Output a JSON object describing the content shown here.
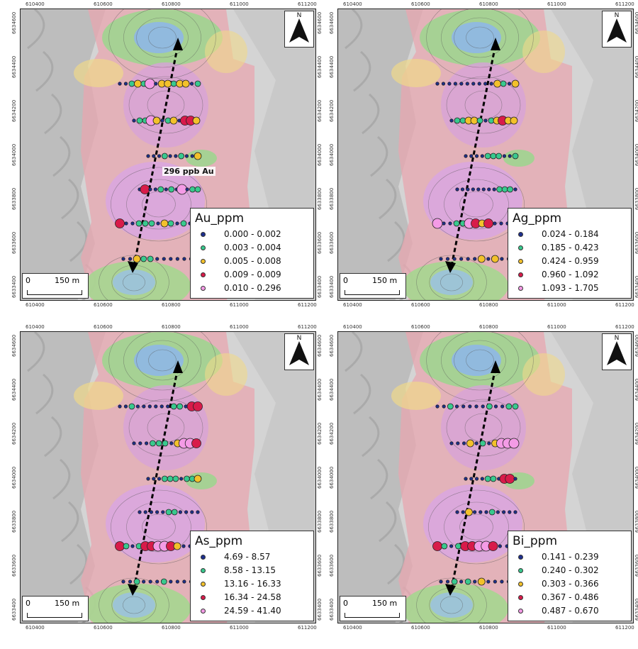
{
  "x_ticks": [
    "610400",
    "610600",
    "610800",
    "611000",
    "611200"
  ],
  "y_ticks": [
    "6633400",
    "6633600",
    "6633800",
    "6634000",
    "6634200",
    "6634400",
    "6634600"
  ],
  "north_label": "N",
  "scale": {
    "zero": "0",
    "distance": "150 m"
  },
  "annotation": "296 ppb Au",
  "class_colors": [
    "#1d2f8f",
    "#39c98e",
    "#f3c12b",
    "#d81b4a",
    "#f49be6"
  ],
  "panels": [
    {
      "title": "Au_ppm",
      "ranges": [
        "0.000 - 0.002",
        "0.003 - 0.004",
        "0.005 - 0.008",
        "0.009 - 0.009",
        "0.010 - 0.296"
      ],
      "lines": [
        [
          0,
          0,
          1,
          2,
          1,
          4,
          0,
          2,
          2,
          1,
          2,
          2,
          0,
          1
        ],
        [
          0,
          1,
          1,
          4,
          2,
          0,
          1,
          2,
          0,
          3,
          3,
          2
        ],
        [
          0,
          0,
          0,
          1,
          0,
          0,
          1,
          0,
          0,
          2
        ],
        [
          0,
          3,
          0,
          0,
          1,
          0,
          1,
          0,
          4,
          0,
          1,
          1
        ],
        [
          3,
          0,
          0,
          1,
          1,
          1,
          0,
          2,
          1,
          0,
          1,
          0,
          0
        ],
        [
          0,
          0,
          2,
          1,
          1,
          0,
          0,
          0,
          0,
          0,
          0,
          0
        ]
      ]
    },
    {
      "title": "Ag_ppm",
      "ranges": [
        "0.024 - 0.184",
        "0.185 - 0.423",
        "0.424 - 0.959",
        "0.960 - 1.092",
        "1.093 - 1.705"
      ],
      "lines": [
        [
          0,
          0,
          0,
          0,
          0,
          0,
          0,
          0,
          0,
          0,
          2,
          1,
          0,
          2
        ],
        [
          0,
          1,
          1,
          2,
          2,
          1,
          0,
          1,
          2,
          3,
          2,
          2
        ],
        [
          0,
          0,
          0,
          0,
          1,
          1,
          1,
          0,
          0,
          1
        ],
        [
          0,
          0,
          0,
          0,
          0,
          0,
          0,
          0,
          1,
          1,
          1,
          0
        ],
        [
          4,
          0,
          0,
          1,
          1,
          4,
          3,
          2,
          3,
          0,
          0,
          0,
          0
        ],
        [
          0,
          0,
          0,
          0,
          0,
          0,
          2,
          0,
          2,
          0,
          0,
          1
        ]
      ]
    },
    {
      "title": "As_ppm",
      "ranges": [
        "4.69 - 8.57",
        "8.58 - 13.15",
        "13.16 - 16.33",
        "16.34 - 24.58",
        "24.59 - 41.40"
      ],
      "lines": [
        [
          0,
          0,
          1,
          0,
          0,
          0,
          0,
          0,
          0,
          1,
          1,
          0,
          3,
          3
        ],
        [
          0,
          0,
          0,
          1,
          1,
          1,
          0,
          2,
          4,
          4,
          3
        ],
        [
          0,
          0,
          0,
          1,
          1,
          1,
          0,
          1,
          1,
          2
        ],
        [
          0,
          0,
          0,
          0,
          0,
          1,
          1,
          0,
          0,
          0,
          0
        ],
        [
          3,
          1,
          0,
          1,
          3,
          3,
          4,
          4,
          3,
          2,
          0,
          0,
          0
        ],
        [
          0,
          0,
          1,
          0,
          0,
          0,
          1,
          0,
          0,
          0,
          0,
          0
        ]
      ]
    },
    {
      "title": "Bi_ppm",
      "ranges": [
        "0.141 - 0.239",
        "0.240 - 0.302",
        "0.303 - 0.366",
        "0.367 - 0.486",
        "0.487 - 0.670"
      ],
      "lines": [
        [
          0,
          0,
          1,
          0,
          0,
          0,
          0,
          0,
          1,
          0,
          0,
          1,
          1
        ],
        [
          0,
          0,
          0,
          2,
          0,
          1,
          0,
          2,
          4,
          4,
          4
        ],
        [
          0,
          0,
          0,
          0,
          1,
          1,
          0,
          3,
          3,
          0
        ],
        [
          0,
          0,
          2,
          0,
          0,
          0,
          1,
          0,
          0,
          0,
          0
        ],
        [
          3,
          1,
          0,
          1,
          3,
          3,
          4,
          4,
          3,
          0,
          0,
          0
        ],
        [
          0,
          0,
          1,
          0,
          1,
          0,
          2,
          0,
          0,
          0,
          0,
          0
        ]
      ]
    }
  ]
}
